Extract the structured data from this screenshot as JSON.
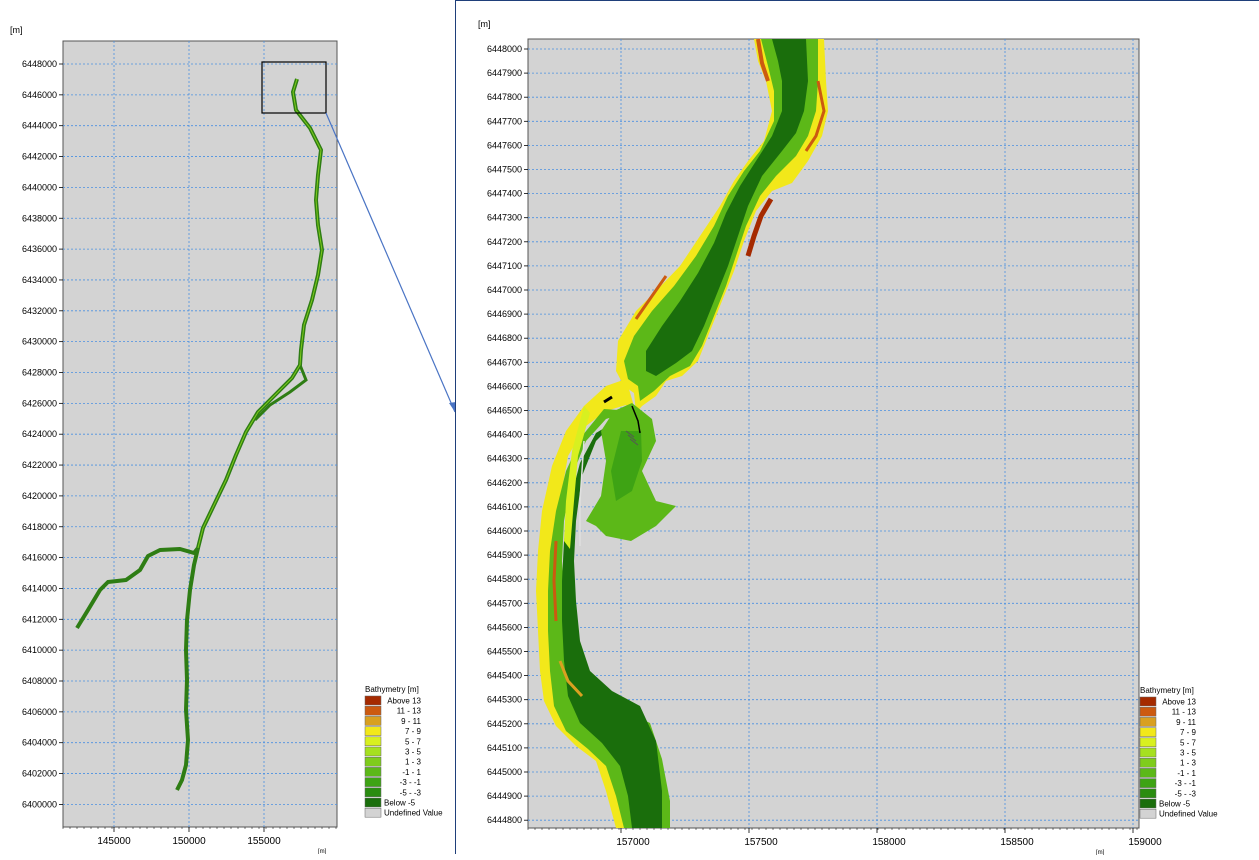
{
  "unit_label": "[m]",
  "left_map": {
    "y_ticks": [
      "6448000",
      "6446000",
      "6444000",
      "6442000",
      "6440000",
      "6438000",
      "6436000",
      "6434000",
      "6432000",
      "6430000",
      "6428000",
      "6426000",
      "6424000",
      "6422000",
      "6420000",
      "6418000",
      "6416000",
      "6414000",
      "6412000",
      "6410000",
      "6408000",
      "6406000",
      "6404000",
      "6402000",
      "6400000"
    ],
    "x_ticks": [
      "145000",
      "150000",
      "155000"
    ]
  },
  "right_map": {
    "y_ticks": [
      "6448000",
      "6447900",
      "6447800",
      "6447700",
      "6447600",
      "6447500",
      "6447400",
      "6447300",
      "6447200",
      "6447100",
      "6447000",
      "6446900",
      "6446800",
      "6446700",
      "6446600",
      "6446500",
      "6446400",
      "6446300",
      "6446200",
      "6446100",
      "6446000",
      "6445900",
      "6445800",
      "6445700",
      "6445600",
      "6445500",
      "6445400",
      "6445300",
      "6445200",
      "6445100",
      "6445000",
      "6444900",
      "6444800"
    ],
    "x_ticks": [
      "157000",
      "157500",
      "158000",
      "158500",
      "159000"
    ]
  },
  "legend": {
    "title": "Bathymetry [m]",
    "items": [
      {
        "label": "Above 13",
        "color": "#a52a00"
      },
      {
        "label": "11 - 13",
        "color": "#cc5a10"
      },
      {
        "label": "9 - 11",
        "color": "#d9a020"
      },
      {
        "label": "7 -  9",
        "color": "#f2e81a"
      },
      {
        "label": "5 -  7",
        "color": "#d8f020"
      },
      {
        "label": "3 -  5",
        "color": "#a6e020"
      },
      {
        "label": "1 -  3",
        "color": "#7fcc1c"
      },
      {
        "label": "-1 -  1",
        "color": "#5cb818"
      },
      {
        "label": "-3 - -1",
        "color": "#3ea314"
      },
      {
        "label": "-5 - -3",
        "color": "#2a8c10"
      },
      {
        "label": "Below  -5",
        "color": "#1a6e0c"
      },
      {
        "label": "Undefined Value",
        "color": "#d3d3d3"
      }
    ]
  }
}
